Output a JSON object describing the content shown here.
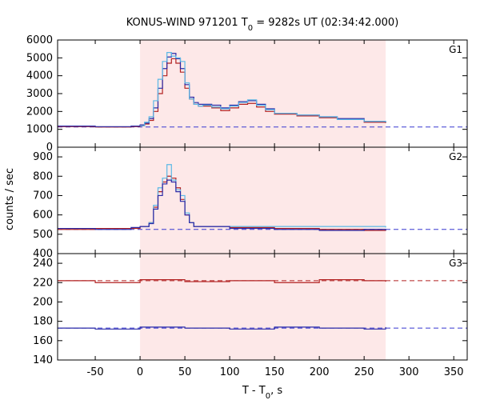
{
  "chart_data": {
    "type": "line",
    "title": {
      "prefix": "KONUS-WIND 971201 T",
      "sub": "0",
      "suffix": " = 9282s UT (02:34:42.000)"
    },
    "xlabel": {
      "main": "T - T",
      "sub": "0",
      "suffix": ", s"
    },
    "ylabel": "counts / sec",
    "xlim": [
      -92,
      365
    ],
    "xticks": [
      -50,
      0,
      50,
      100,
      150,
      200,
      250,
      300,
      350
    ],
    "highlight_interval": [
      0,
      274
    ],
    "colors": {
      "highlight": "#fde8e8",
      "dark_red": "#b22222",
      "dark_blue": "#2a2aa8",
      "light_blue": "#5bb8e6",
      "magenta": "#d23c8c",
      "blue_dash": "#3838d0",
      "red_dash": "#b22222"
    },
    "panels": [
      {
        "name": "G1",
        "ylim": [
          0,
          6000
        ],
        "yticks": [
          0,
          1000,
          2000,
          3000,
          4000,
          5000,
          6000
        ],
        "background_level": {
          "value": 1130,
          "color": "blue"
        },
        "series": [
          {
            "color": "dark_red",
            "x": [
              -92,
              -50,
              -10,
              0,
              5,
              10,
              15,
              20,
              25,
              30,
              35,
              40,
              45,
              50,
              55,
              60,
              65,
              70,
              80,
              90,
              100,
              110,
              120,
              130,
              140,
              150,
              175,
              200,
              220,
              250,
              274
            ],
            "y": [
              1150,
              1130,
              1150,
              1200,
              1300,
              1500,
              2000,
              3000,
              4000,
              4700,
              4950,
              4700,
              4200,
              3300,
              2700,
              2400,
              2300,
              2300,
              2200,
              2050,
              2200,
              2400,
              2450,
              2250,
              2000,
              1850,
              1750,
              1650,
              1550,
              1400,
              1350
            ]
          },
          {
            "color": "dark_blue",
            "x": [
              -92,
              -50,
              -10,
              0,
              5,
              10,
              15,
              20,
              25,
              30,
              35,
              40,
              45,
              50,
              55,
              60,
              65,
              70,
              80,
              90,
              100,
              110,
              120,
              130,
              140,
              150,
              175,
              200,
              220,
              250,
              274
            ],
            "y": [
              1180,
              1150,
              1180,
              1250,
              1350,
              1600,
              2200,
              3300,
              4400,
              5050,
              5250,
              4950,
              4400,
              3500,
              2800,
              2500,
              2400,
              2400,
              2350,
              2200,
              2350,
              2550,
              2600,
              2400,
              2150,
              1900,
              1800,
              1700,
              1600,
              1450,
              1400
            ]
          },
          {
            "color": "light_blue",
            "x": [
              0,
              5,
              10,
              15,
              20,
              25,
              30,
              35,
              40,
              45,
              50,
              55,
              60,
              65,
              70,
              80,
              90,
              100,
              110,
              120,
              130,
              140,
              150,
              175,
              200,
              220,
              250,
              274
            ],
            "y": [
              1200,
              1400,
              1700,
              2600,
              3800,
              4800,
              5300,
              5100,
              5000,
              4800,
              3600,
              2700,
              2400,
              2300,
              2350,
              2250,
              2150,
              2300,
              2500,
              2650,
              2350,
              2100,
              1900,
              1800,
              1700,
              1550,
              1450,
              1400
            ]
          }
        ]
      },
      {
        "name": "G2",
        "ylim": [
          400,
          950
        ],
        "yticks": [
          400,
          500,
          600,
          700,
          800,
          900
        ],
        "background_level": {
          "value": 525,
          "color": "blue"
        },
        "series": [
          {
            "color": "dark_red",
            "x": [
              -92,
              -50,
              -10,
              0,
              10,
              15,
              20,
              25,
              30,
              35,
              40,
              45,
              50,
              55,
              60,
              100,
              150,
              200,
              250,
              274
            ],
            "y": [
              525,
              530,
              530,
              540,
              560,
              640,
              720,
              770,
              800,
              790,
              740,
              680,
              600,
              560,
              540,
              535,
              530,
              525,
              520,
              525
            ]
          },
          {
            "color": "light_blue",
            "x": [
              0,
              10,
              15,
              20,
              25,
              30,
              35,
              40,
              45,
              50,
              55,
              60,
              274
            ],
            "y": [
              540,
              560,
              650,
              740,
              790,
              860,
              780,
              730,
              700,
              610,
              560,
              540,
              535
            ]
          },
          {
            "color": "dark_blue",
            "x": [
              -92,
              -50,
              -10,
              0,
              10,
              15,
              20,
              25,
              30,
              35,
              40,
              45,
              50,
              55,
              60,
              100,
              150,
              200,
              250,
              274
            ],
            "y": [
              530,
              525,
              535,
              540,
              555,
              630,
              700,
              760,
              780,
              770,
              720,
              670,
              600,
              560,
              540,
              530,
              525,
              520,
              525,
              520
            ]
          }
        ]
      },
      {
        "name": "G3",
        "ylim": [
          140,
          250
        ],
        "yticks": [
          140,
          160,
          180,
          200,
          220,
          240
        ],
        "background_level": [
          {
            "value": 222,
            "color": "red"
          },
          {
            "value": 173,
            "color": "blue"
          }
        ],
        "series": [
          {
            "color": "dark_red",
            "x": [
              -92,
              -50,
              0,
              50,
              100,
              150,
              200,
              250,
              274
            ],
            "y": [
              222,
              220,
              223,
              221,
              222,
              220,
              223,
              222,
              221
            ]
          },
          {
            "color": "dark_blue",
            "x": [
              -92,
              -50,
              0,
              50,
              100,
              150,
              200,
              250,
              274
            ],
            "y": [
              173,
              172,
              174,
              173,
              172,
              174,
              173,
              172,
              174
            ]
          }
        ]
      }
    ]
  }
}
